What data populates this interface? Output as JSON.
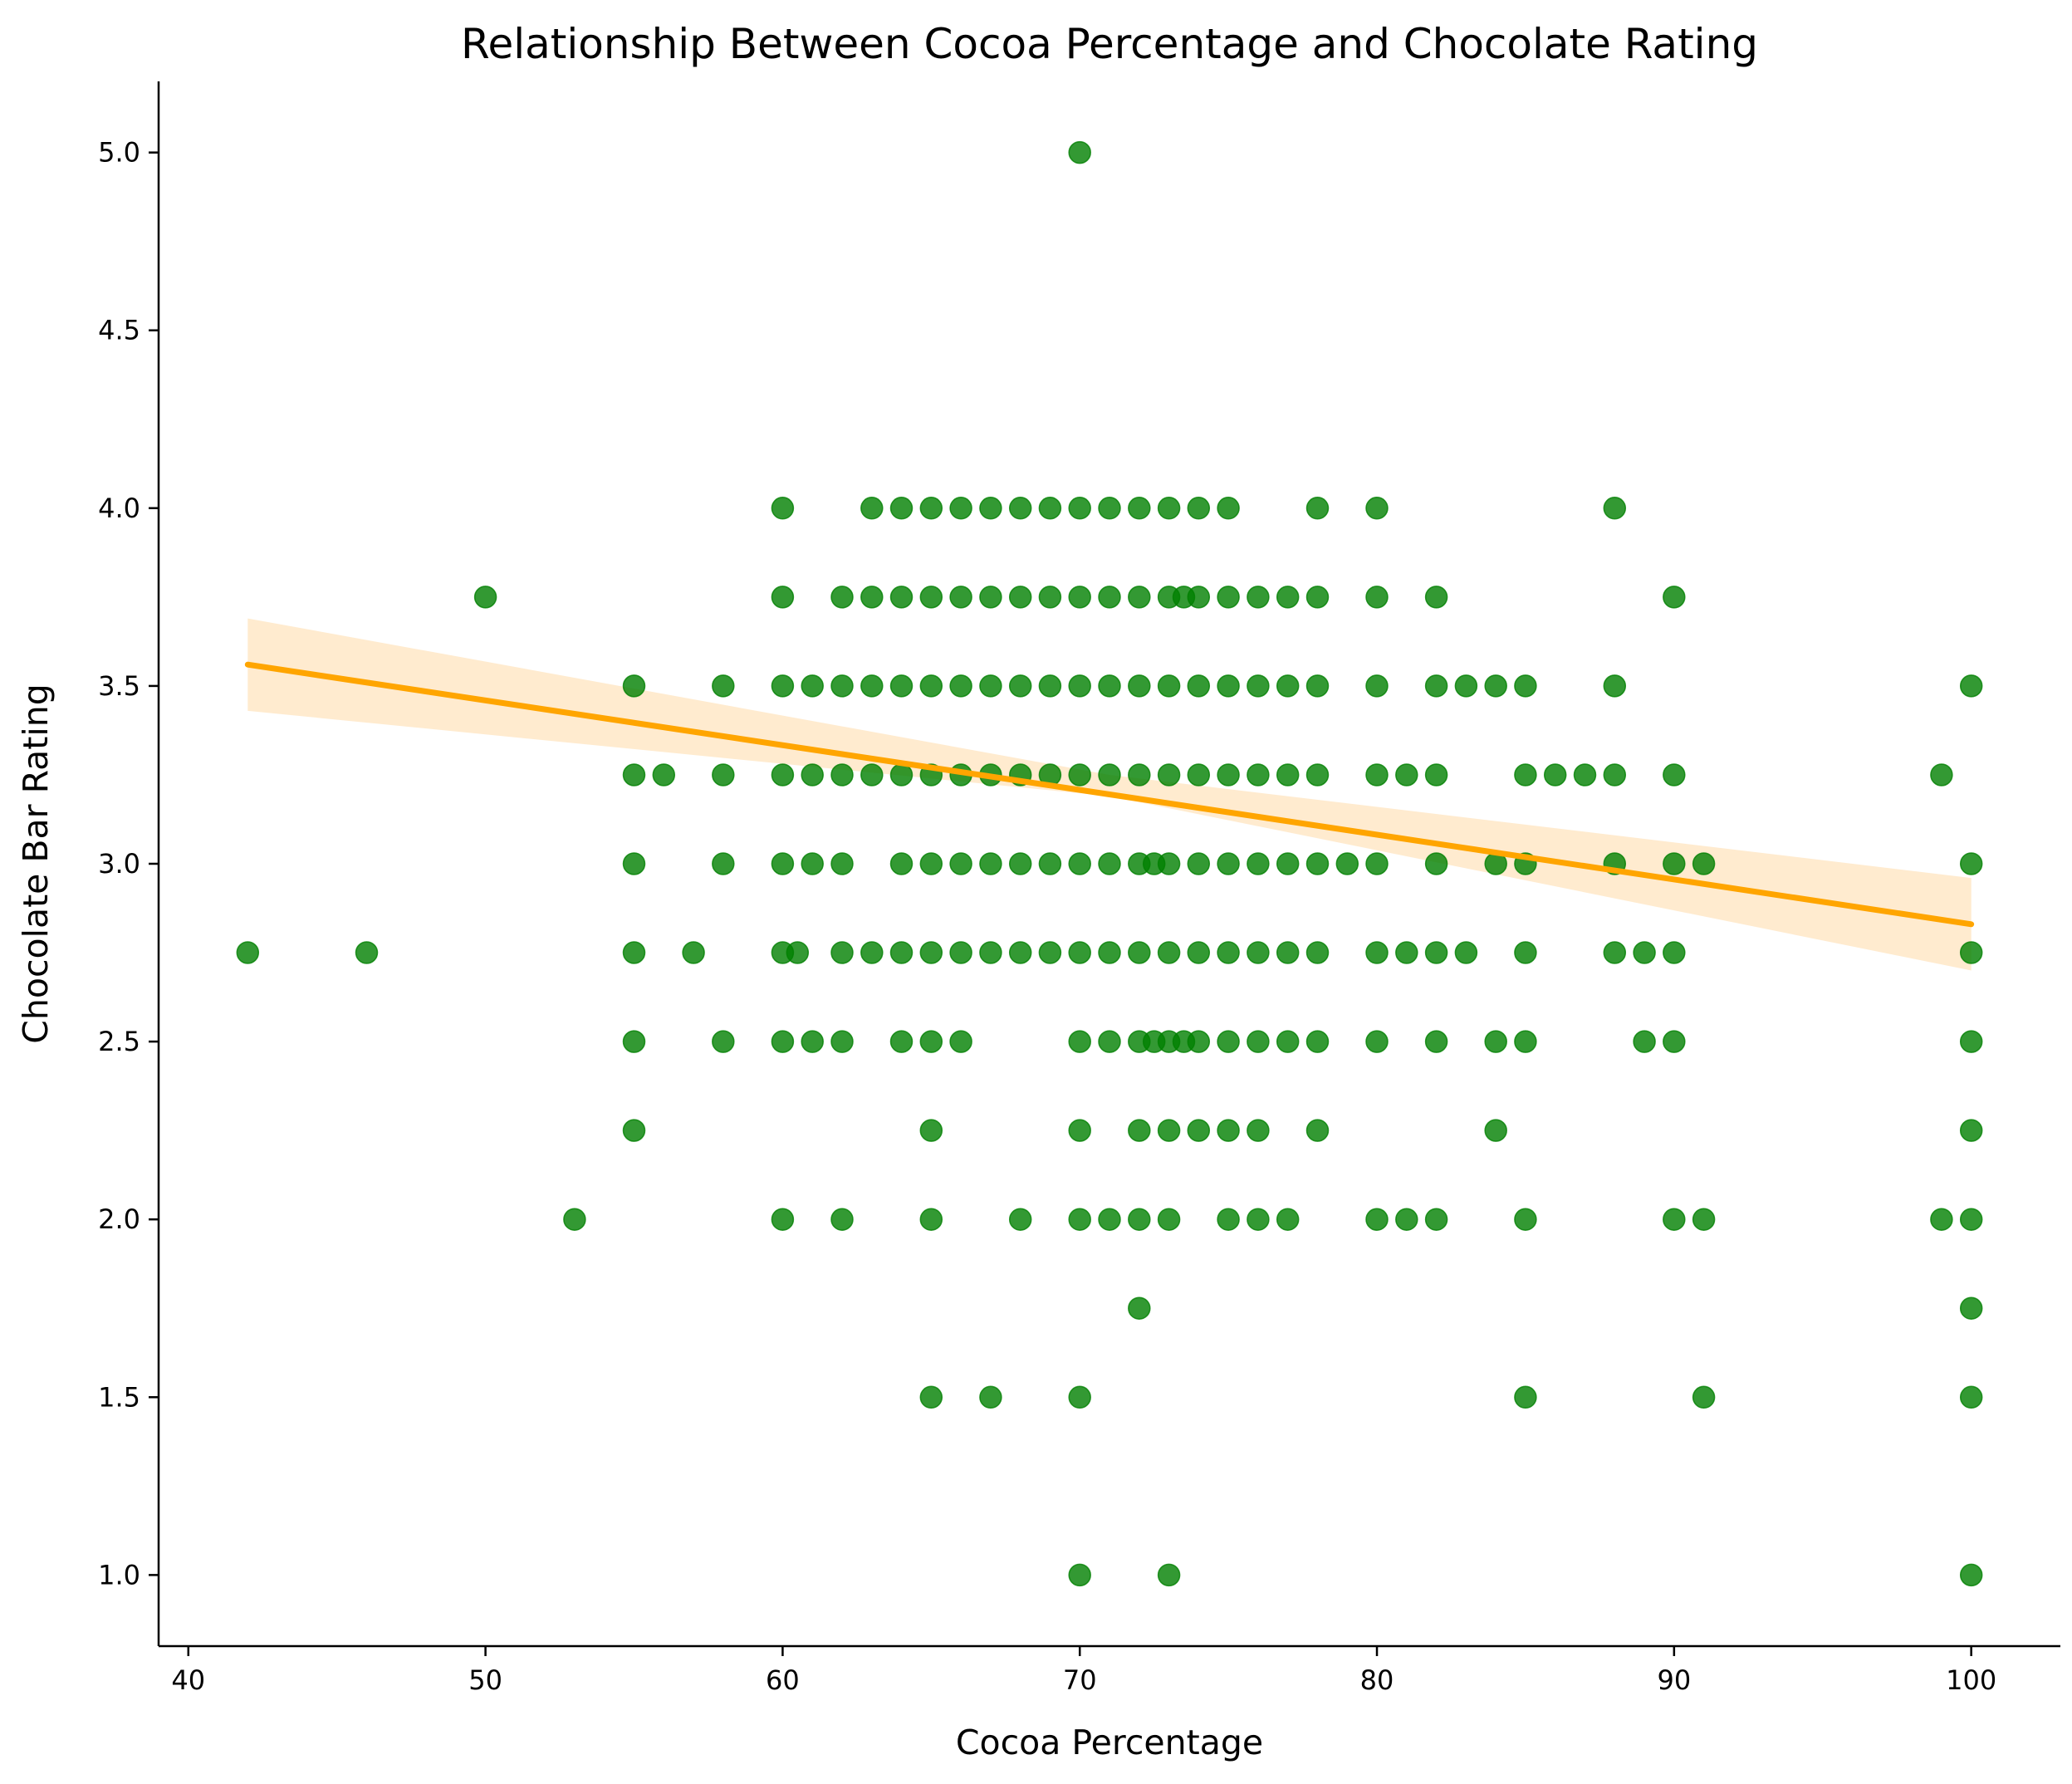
{
  "chart_data": {
    "type": "scatter",
    "title": "Relationship Between Cocoa Percentage and Chocolate Rating",
    "xlabel": "Cocoa Percentage",
    "ylabel": "Chocolate Bar Rating",
    "xlim": [
      39,
      103
    ],
    "ylim": [
      0.8,
      5.2
    ],
    "xticks": [
      40,
      50,
      60,
      70,
      80,
      90,
      100
    ],
    "yticks": [
      1.0,
      1.5,
      2.0,
      2.5,
      3.0,
      3.5,
      4.0,
      4.5,
      5.0
    ],
    "x_tick_labels": [
      "40",
      "50",
      "60",
      "70",
      "80",
      "90",
      "100"
    ],
    "y_tick_labels": [
      "1.0",
      "1.5",
      "2.0",
      "2.5",
      "3.0",
      "3.5",
      "4.0",
      "4.5",
      "5.0"
    ],
    "grid": false,
    "colors": {
      "points": "#008000",
      "regression_line": "#FFA500",
      "confidence_band": "#FFE8C7"
    },
    "points": [
      {
        "x": 70,
        "y": 5.0
      },
      {
        "x": 60,
        "y": 4.0
      },
      {
        "x": 63,
        "y": 4.0
      },
      {
        "x": 64,
        "y": 4.0
      },
      {
        "x": 65,
        "y": 4.0
      },
      {
        "x": 66,
        "y": 4.0
      },
      {
        "x": 67,
        "y": 4.0
      },
      {
        "x": 68,
        "y": 4.0
      },
      {
        "x": 69,
        "y": 4.0
      },
      {
        "x": 70,
        "y": 4.0
      },
      {
        "x": 71,
        "y": 4.0
      },
      {
        "x": 72,
        "y": 4.0
      },
      {
        "x": 73,
        "y": 4.0
      },
      {
        "x": 74,
        "y": 4.0
      },
      {
        "x": 75,
        "y": 4.0
      },
      {
        "x": 78,
        "y": 4.0
      },
      {
        "x": 80,
        "y": 4.0
      },
      {
        "x": 88,
        "y": 4.0
      },
      {
        "x": 50,
        "y": 3.75
      },
      {
        "x": 60,
        "y": 3.75
      },
      {
        "x": 62,
        "y": 3.75
      },
      {
        "x": 63,
        "y": 3.75
      },
      {
        "x": 64,
        "y": 3.75
      },
      {
        "x": 65,
        "y": 3.75
      },
      {
        "x": 66,
        "y": 3.75
      },
      {
        "x": 67,
        "y": 3.75
      },
      {
        "x": 68,
        "y": 3.75
      },
      {
        "x": 69,
        "y": 3.75
      },
      {
        "x": 70,
        "y": 3.75
      },
      {
        "x": 71,
        "y": 3.75
      },
      {
        "x": 72,
        "y": 3.75
      },
      {
        "x": 73,
        "y": 3.75
      },
      {
        "x": 73.5,
        "y": 3.75
      },
      {
        "x": 74,
        "y": 3.75
      },
      {
        "x": 75,
        "y": 3.75
      },
      {
        "x": 76,
        "y": 3.75
      },
      {
        "x": 77,
        "y": 3.75
      },
      {
        "x": 78,
        "y": 3.75
      },
      {
        "x": 80,
        "y": 3.75
      },
      {
        "x": 82,
        "y": 3.75
      },
      {
        "x": 90,
        "y": 3.75
      },
      {
        "x": 55,
        "y": 3.5
      },
      {
        "x": 58,
        "y": 3.5
      },
      {
        "x": 60,
        "y": 3.5
      },
      {
        "x": 61,
        "y": 3.5
      },
      {
        "x": 62,
        "y": 3.5
      },
      {
        "x": 63,
        "y": 3.5
      },
      {
        "x": 64,
        "y": 3.5
      },
      {
        "x": 65,
        "y": 3.5
      },
      {
        "x": 66,
        "y": 3.5
      },
      {
        "x": 67,
        "y": 3.5
      },
      {
        "x": 68,
        "y": 3.5
      },
      {
        "x": 69,
        "y": 3.5
      },
      {
        "x": 70,
        "y": 3.5
      },
      {
        "x": 71,
        "y": 3.5
      },
      {
        "x": 72,
        "y": 3.5
      },
      {
        "x": 73,
        "y": 3.5
      },
      {
        "x": 74,
        "y": 3.5
      },
      {
        "x": 75,
        "y": 3.5
      },
      {
        "x": 76,
        "y": 3.5
      },
      {
        "x": 77,
        "y": 3.5
      },
      {
        "x": 78,
        "y": 3.5
      },
      {
        "x": 80,
        "y": 3.5
      },
      {
        "x": 82,
        "y": 3.5
      },
      {
        "x": 83,
        "y": 3.5
      },
      {
        "x": 84,
        "y": 3.5
      },
      {
        "x": 85,
        "y": 3.5
      },
      {
        "x": 88,
        "y": 3.5
      },
      {
        "x": 100,
        "y": 3.5
      },
      {
        "x": 55,
        "y": 3.25
      },
      {
        "x": 56,
        "y": 3.25
      },
      {
        "x": 58,
        "y": 3.25
      },
      {
        "x": 60,
        "y": 3.25
      },
      {
        "x": 61,
        "y": 3.25
      },
      {
        "x": 62,
        "y": 3.25
      },
      {
        "x": 63,
        "y": 3.25
      },
      {
        "x": 64,
        "y": 3.25
      },
      {
        "x": 65,
        "y": 3.25
      },
      {
        "x": 66,
        "y": 3.25
      },
      {
        "x": 67,
        "y": 3.25
      },
      {
        "x": 68,
        "y": 3.25
      },
      {
        "x": 69,
        "y": 3.25
      },
      {
        "x": 70,
        "y": 3.25
      },
      {
        "x": 71,
        "y": 3.25
      },
      {
        "x": 72,
        "y": 3.25
      },
      {
        "x": 73,
        "y": 3.25
      },
      {
        "x": 74,
        "y": 3.25
      },
      {
        "x": 75,
        "y": 3.25
      },
      {
        "x": 76,
        "y": 3.25
      },
      {
        "x": 77,
        "y": 3.25
      },
      {
        "x": 78,
        "y": 3.25
      },
      {
        "x": 80,
        "y": 3.25
      },
      {
        "x": 81,
        "y": 3.25
      },
      {
        "x": 82,
        "y": 3.25
      },
      {
        "x": 85,
        "y": 3.25
      },
      {
        "x": 86,
        "y": 3.25
      },
      {
        "x": 87,
        "y": 3.25
      },
      {
        "x": 88,
        "y": 3.25
      },
      {
        "x": 90,
        "y": 3.25
      },
      {
        "x": 99,
        "y": 3.25
      },
      {
        "x": 55,
        "y": 3.0
      },
      {
        "x": 58,
        "y": 3.0
      },
      {
        "x": 60,
        "y": 3.0
      },
      {
        "x": 61,
        "y": 3.0
      },
      {
        "x": 62,
        "y": 3.0
      },
      {
        "x": 64,
        "y": 3.0
      },
      {
        "x": 65,
        "y": 3.0
      },
      {
        "x": 66,
        "y": 3.0
      },
      {
        "x": 67,
        "y": 3.0
      },
      {
        "x": 68,
        "y": 3.0
      },
      {
        "x": 69,
        "y": 3.0
      },
      {
        "x": 70,
        "y": 3.0
      },
      {
        "x": 71,
        "y": 3.0
      },
      {
        "x": 72,
        "y": 3.0
      },
      {
        "x": 72.5,
        "y": 3.0
      },
      {
        "x": 73,
        "y": 3.0
      },
      {
        "x": 74,
        "y": 3.0
      },
      {
        "x": 75,
        "y": 3.0
      },
      {
        "x": 76,
        "y": 3.0
      },
      {
        "x": 77,
        "y": 3.0
      },
      {
        "x": 78,
        "y": 3.0
      },
      {
        "x": 79,
        "y": 3.0
      },
      {
        "x": 80,
        "y": 3.0
      },
      {
        "x": 82,
        "y": 3.0
      },
      {
        "x": 84,
        "y": 3.0
      },
      {
        "x": 85,
        "y": 3.0
      },
      {
        "x": 88,
        "y": 3.0
      },
      {
        "x": 90,
        "y": 3.0
      },
      {
        "x": 91,
        "y": 3.0
      },
      {
        "x": 100,
        "y": 3.0
      },
      {
        "x": 42,
        "y": 2.75
      },
      {
        "x": 46,
        "y": 2.75
      },
      {
        "x": 55,
        "y": 2.75
      },
      {
        "x": 57,
        "y": 2.75
      },
      {
        "x": 60,
        "y": 2.75
      },
      {
        "x": 60.5,
        "y": 2.75
      },
      {
        "x": 62,
        "y": 2.75
      },
      {
        "x": 63,
        "y": 2.75
      },
      {
        "x": 64,
        "y": 2.75
      },
      {
        "x": 65,
        "y": 2.75
      },
      {
        "x": 66,
        "y": 2.75
      },
      {
        "x": 67,
        "y": 2.75
      },
      {
        "x": 68,
        "y": 2.75
      },
      {
        "x": 69,
        "y": 2.75
      },
      {
        "x": 70,
        "y": 2.75
      },
      {
        "x": 71,
        "y": 2.75
      },
      {
        "x": 72,
        "y": 2.75
      },
      {
        "x": 73,
        "y": 2.75
      },
      {
        "x": 74,
        "y": 2.75
      },
      {
        "x": 75,
        "y": 2.75
      },
      {
        "x": 76,
        "y": 2.75
      },
      {
        "x": 77,
        "y": 2.75
      },
      {
        "x": 78,
        "y": 2.75
      },
      {
        "x": 80,
        "y": 2.75
      },
      {
        "x": 81,
        "y": 2.75
      },
      {
        "x": 82,
        "y": 2.75
      },
      {
        "x": 83,
        "y": 2.75
      },
      {
        "x": 85,
        "y": 2.75
      },
      {
        "x": 88,
        "y": 2.75
      },
      {
        "x": 89,
        "y": 2.75
      },
      {
        "x": 90,
        "y": 2.75
      },
      {
        "x": 100,
        "y": 2.75
      },
      {
        "x": 55,
        "y": 2.5
      },
      {
        "x": 58,
        "y": 2.5
      },
      {
        "x": 60,
        "y": 2.5
      },
      {
        "x": 61,
        "y": 2.5
      },
      {
        "x": 62,
        "y": 2.5
      },
      {
        "x": 64,
        "y": 2.5
      },
      {
        "x": 65,
        "y": 2.5
      },
      {
        "x": 66,
        "y": 2.5
      },
      {
        "x": 70,
        "y": 2.5
      },
      {
        "x": 71,
        "y": 2.5
      },
      {
        "x": 72,
        "y": 2.5
      },
      {
        "x": 72.5,
        "y": 2.5
      },
      {
        "x": 73,
        "y": 2.5
      },
      {
        "x": 73.5,
        "y": 2.5
      },
      {
        "x": 74,
        "y": 2.5
      },
      {
        "x": 75,
        "y": 2.5
      },
      {
        "x": 76,
        "y": 2.5
      },
      {
        "x": 77,
        "y": 2.5
      },
      {
        "x": 78,
        "y": 2.5
      },
      {
        "x": 80,
        "y": 2.5
      },
      {
        "x": 82,
        "y": 2.5
      },
      {
        "x": 84,
        "y": 2.5
      },
      {
        "x": 85,
        "y": 2.5
      },
      {
        "x": 89,
        "y": 2.5
      },
      {
        "x": 90,
        "y": 2.5
      },
      {
        "x": 100,
        "y": 2.5
      },
      {
        "x": 55,
        "y": 2.25
      },
      {
        "x": 65,
        "y": 2.25
      },
      {
        "x": 70,
        "y": 2.25
      },
      {
        "x": 72,
        "y": 2.25
      },
      {
        "x": 73,
        "y": 2.25
      },
      {
        "x": 74,
        "y": 2.25
      },
      {
        "x": 75,
        "y": 2.25
      },
      {
        "x": 76,
        "y": 2.25
      },
      {
        "x": 78,
        "y": 2.25
      },
      {
        "x": 84,
        "y": 2.25
      },
      {
        "x": 100,
        "y": 2.25
      },
      {
        "x": 53,
        "y": 2.0
      },
      {
        "x": 60,
        "y": 2.0
      },
      {
        "x": 62,
        "y": 2.0
      },
      {
        "x": 65,
        "y": 2.0
      },
      {
        "x": 68,
        "y": 2.0
      },
      {
        "x": 70,
        "y": 2.0
      },
      {
        "x": 71,
        "y": 2.0
      },
      {
        "x": 72,
        "y": 2.0
      },
      {
        "x": 73,
        "y": 2.0
      },
      {
        "x": 75,
        "y": 2.0
      },
      {
        "x": 76,
        "y": 2.0
      },
      {
        "x": 77,
        "y": 2.0
      },
      {
        "x": 80,
        "y": 2.0
      },
      {
        "x": 81,
        "y": 2.0
      },
      {
        "x": 82,
        "y": 2.0
      },
      {
        "x": 85,
        "y": 2.0
      },
      {
        "x": 90,
        "y": 2.0
      },
      {
        "x": 91,
        "y": 2.0
      },
      {
        "x": 99,
        "y": 2.0
      },
      {
        "x": 100,
        "y": 2.0
      },
      {
        "x": 72,
        "y": 1.75
      },
      {
        "x": 100,
        "y": 1.75
      },
      {
        "x": 65,
        "y": 1.5
      },
      {
        "x": 67,
        "y": 1.5
      },
      {
        "x": 70,
        "y": 1.5
      },
      {
        "x": 85,
        "y": 1.5
      },
      {
        "x": 91,
        "y": 1.5
      },
      {
        "x": 100,
        "y": 1.5
      },
      {
        "x": 70,
        "y": 1.0
      },
      {
        "x": 73,
        "y": 1.0
      },
      {
        "x": 100,
        "y": 1.0
      }
    ],
    "regression": {
      "x_range": [
        42,
        100
      ],
      "y_start": 3.56,
      "y_end": 2.83,
      "ci_start": [
        3.43,
        3.69
      ],
      "ci_mid": [
        3.19,
        3.25
      ],
      "ci_end": [
        2.7,
        2.96
      ]
    }
  }
}
